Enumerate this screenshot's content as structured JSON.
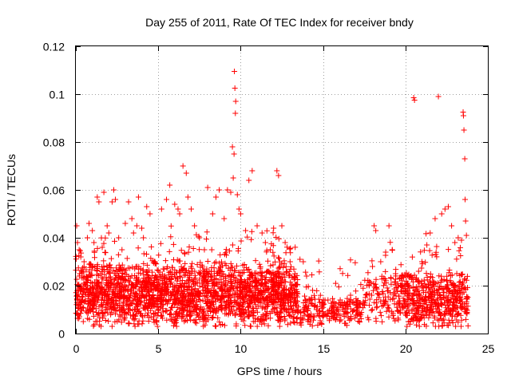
{
  "chart_data": {
    "type": "scatter",
    "title": "Day 255 of 2011, Rate Of TEC Index for receiver bndy",
    "xlabel": "GPS time / hours",
    "ylabel": "ROTI / TECUs",
    "xlim": [
      0,
      25
    ],
    "ylim": [
      0,
      0.12
    ],
    "xticks": [
      "0",
      "5",
      "10",
      "15",
      "20",
      "25"
    ],
    "yticks": [
      "0",
      "0.02",
      "0.04",
      "0.06",
      "0.08",
      "0.1",
      "0.12"
    ],
    "grid": true,
    "marker": "plus",
    "color": "#ff0000",
    "series": [
      {
        "points": [
          [
            0.05,
            0.045
          ],
          [
            0.1,
            0.038
          ],
          [
            0.2,
            0.035
          ],
          [
            0.3,
            0.032
          ],
          [
            0.35,
            0.026
          ],
          [
            0.5,
            0.03
          ],
          [
            0.7,
            0.04
          ],
          [
            0.8,
            0.046
          ],
          [
            1.0,
            0.043
          ],
          [
            1.1,
            0.038
          ],
          [
            1.3,
            0.057
          ],
          [
            1.4,
            0.055
          ],
          [
            1.6,
            0.036
          ],
          [
            1.7,
            0.059
          ],
          [
            1.9,
            0.045
          ],
          [
            2.0,
            0.042
          ],
          [
            2.2,
            0.055
          ],
          [
            2.3,
            0.06
          ],
          [
            2.4,
            0.056
          ],
          [
            2.6,
            0.04
          ],
          [
            2.8,
            0.035
          ],
          [
            3.0,
            0.046
          ],
          [
            3.2,
            0.055
          ],
          [
            3.4,
            0.048
          ],
          [
            3.5,
            0.042
          ],
          [
            3.7,
            0.045
          ],
          [
            3.8,
            0.057
          ],
          [
            4.0,
            0.044
          ],
          [
            4.1,
            0.04
          ],
          [
            4.3,
            0.053
          ],
          [
            4.5,
            0.05
          ],
          [
            4.8,
            0.03
          ],
          [
            5.2,
            0.052
          ],
          [
            5.5,
            0.056
          ],
          [
            5.7,
            0.062
          ],
          [
            6.0,
            0.054
          ],
          [
            6.2,
            0.052
          ],
          [
            6.3,
            0.05
          ],
          [
            6.5,
            0.07
          ],
          [
            6.7,
            0.067
          ],
          [
            6.8,
            0.057
          ],
          [
            7.0,
            0.052
          ],
          [
            7.2,
            0.045
          ],
          [
            7.5,
            0.04
          ],
          [
            7.8,
            0.035
          ],
          [
            8.0,
            0.061
          ],
          [
            8.3,
            0.05
          ],
          [
            8.5,
            0.057
          ],
          [
            8.7,
            0.06
          ],
          [
            9.0,
            0.048
          ],
          [
            9.2,
            0.06
          ],
          [
            9.4,
            0.059
          ],
          [
            9.5,
            0.078
          ],
          [
            9.55,
            0.065
          ],
          [
            9.6,
            0.075
          ],
          [
            9.62,
            0.1095
          ],
          [
            9.65,
            0.1025
          ],
          [
            9.7,
            0.097
          ],
          [
            9.68,
            0.092
          ],
          [
            9.8,
            0.058
          ],
          [
            9.9,
            0.052
          ],
          [
            10.0,
            0.05
          ],
          [
            10.3,
            0.043
          ],
          [
            10.5,
            0.064
          ],
          [
            10.7,
            0.068
          ],
          [
            11.0,
            0.045
          ],
          [
            11.3,
            0.042
          ],
          [
            11.5,
            0.038
          ],
          [
            11.8,
            0.035
          ],
          [
            12.0,
            0.044
          ],
          [
            12.2,
            0.068
          ],
          [
            12.3,
            0.066
          ],
          [
            12.5,
            0.045
          ],
          [
            12.7,
            0.038
          ],
          [
            13.0,
            0.03
          ],
          [
            13.3,
            0.025
          ],
          [
            13.6,
            0.031
          ],
          [
            13.8,
            0.03
          ],
          [
            14.0,
            0.024
          ],
          [
            14.3,
            0.015
          ],
          [
            14.6,
            0.01
          ],
          [
            15.0,
            0.012
          ],
          [
            15.3,
            0.014
          ],
          [
            15.6,
            0.011
          ],
          [
            15.9,
            0.008
          ],
          [
            16.2,
            0.01
          ],
          [
            16.5,
            0.012
          ],
          [
            16.8,
            0.013
          ],
          [
            17.2,
            0.011
          ],
          [
            17.5,
            0.012
          ],
          [
            17.8,
            0.02
          ],
          [
            18.0,
            0.028
          ],
          [
            18.1,
            0.045
          ],
          [
            18.2,
            0.043
          ],
          [
            18.5,
            0.03
          ],
          [
            18.8,
            0.034
          ],
          [
            19.0,
            0.045
          ],
          [
            19.2,
            0.035
          ],
          [
            19.4,
            0.025
          ],
          [
            19.8,
            0.022
          ],
          [
            20.2,
            0.02
          ],
          [
            20.5,
            0.0985
          ],
          [
            20.55,
            0.0975
          ],
          [
            20.8,
            0.026
          ],
          [
            21.0,
            0.03
          ],
          [
            21.3,
            0.037
          ],
          [
            21.5,
            0.042
          ],
          [
            21.8,
            0.048
          ],
          [
            22.0,
            0.099
          ],
          [
            22.2,
            0.05
          ],
          [
            22.4,
            0.052
          ],
          [
            22.6,
            0.053
          ],
          [
            22.8,
            0.045
          ],
          [
            23.0,
            0.038
          ],
          [
            23.2,
            0.04
          ],
          [
            23.4,
            0.039
          ],
          [
            23.5,
            0.0925
          ],
          [
            23.52,
            0.091
          ],
          [
            23.55,
            0.085
          ],
          [
            23.6,
            0.073
          ],
          [
            23.62,
            0.056
          ],
          [
            23.65,
            0.047
          ],
          [
            23.7,
            0.041
          ]
        ]
      }
    ]
  }
}
